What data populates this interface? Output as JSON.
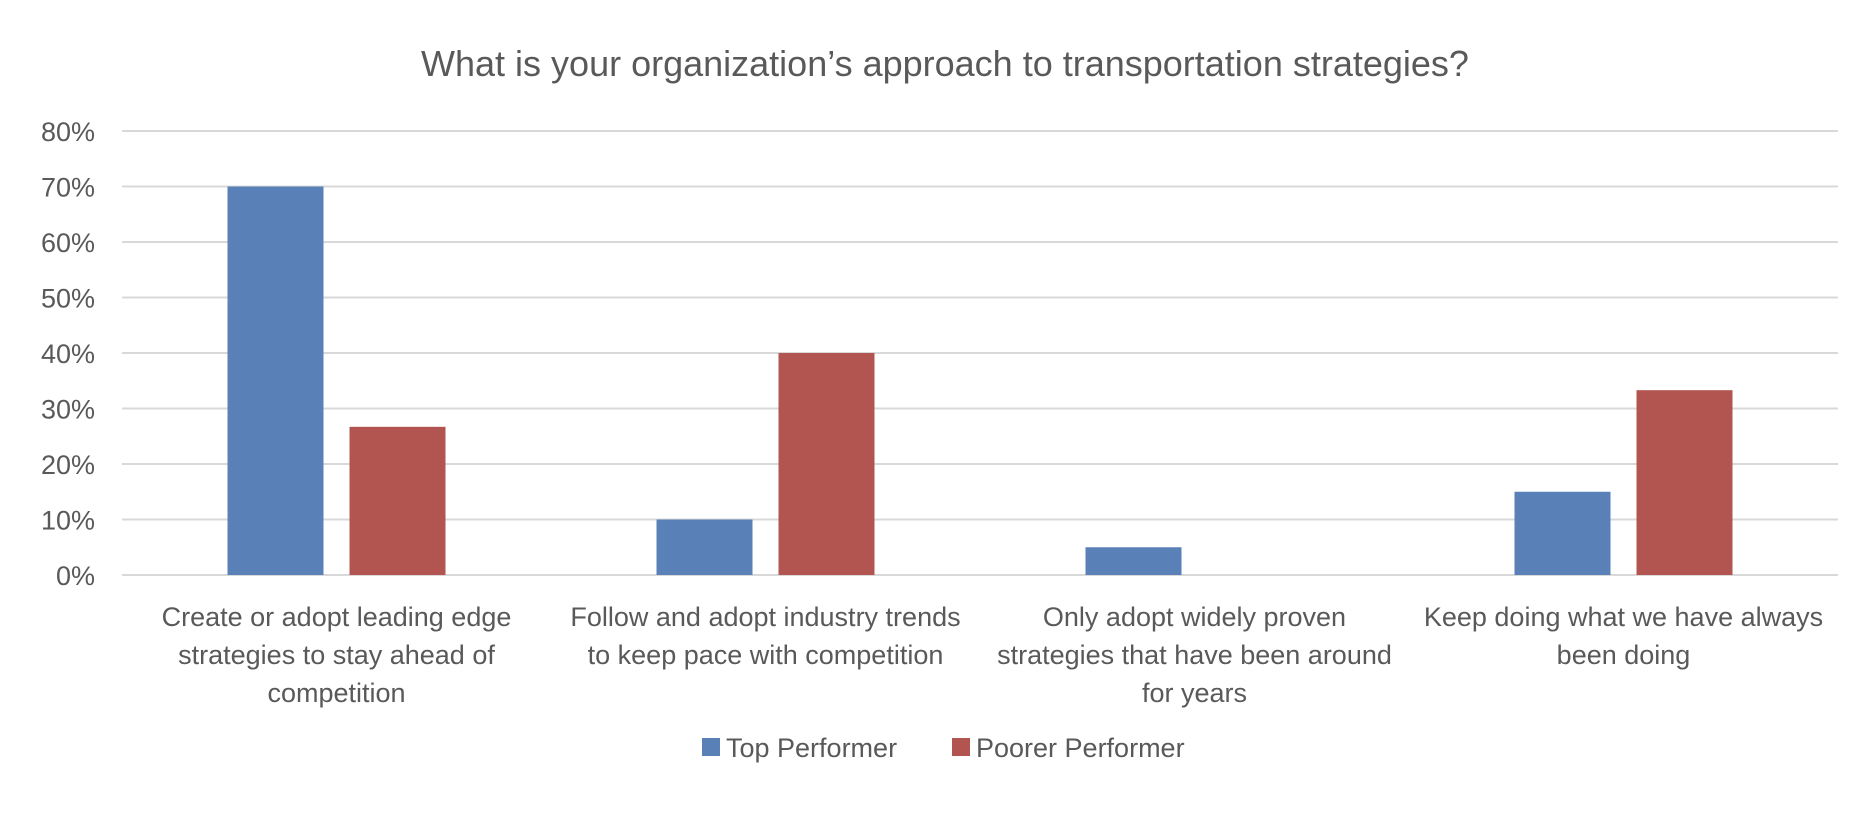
{
  "chart_data": {
    "type": "bar",
    "title": "What is your organization’s approach to transportation strategies?",
    "xlabel": "",
    "ylabel": "",
    "ylim": [
      0,
      0.8
    ],
    "yticks": [
      "0%",
      "10%",
      "20%",
      "30%",
      "40%",
      "50%",
      "60%",
      "70%",
      "80%"
    ],
    "grid": true,
    "legend_position": "bottom",
    "categories": [
      [
        "Create or adopt leading edge",
        "strategies to stay ahead of",
        "competition"
      ],
      [
        "Follow and adopt industry trends",
        "to keep pace with competition"
      ],
      [
        "Only adopt widely proven",
        "strategies that have been around",
        "for years"
      ],
      [
        "Keep doing what we have always",
        "been doing"
      ]
    ],
    "series": [
      {
        "name": "Top Performer",
        "color": "#5a80b8",
        "values": [
          0.7,
          0.1,
          0.05,
          0.15
        ]
      },
      {
        "name": "Poorer Performer",
        "color": "#b25550",
        "values": [
          0.267,
          0.4,
          0.0,
          0.333
        ]
      }
    ]
  }
}
